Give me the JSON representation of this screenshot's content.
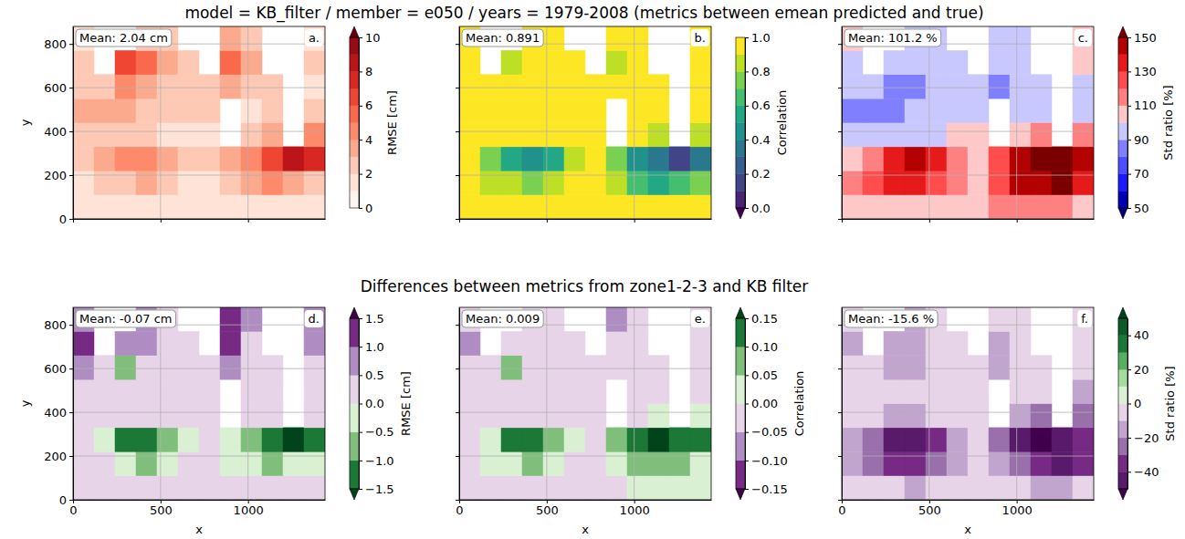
{
  "titles": [
    "model = KB_filter / member = e050 / years = 1979-2008 (metrics between emean predicted and true)",
    "Differences between metrics from zone1-2-3 and KB filter"
  ],
  "chart_data": [
    {
      "type": "heatmap",
      "label": "a.",
      "annotation": "Mean: 2.04 cm",
      "ylabel": "y",
      "tick_labels": "y",
      "grid": true,
      "xlim": [
        0,
        1440
      ],
      "ylim": [
        0,
        880
      ],
      "xticks": [
        0,
        500,
        1000
      ],
      "yticks": [
        0,
        200,
        400,
        600,
        800
      ],
      "x": [
        60,
        180,
        300,
        420,
        540,
        660,
        780,
        900,
        1020,
        1140,
        1260,
        1380
      ],
      "y": [
        55,
        165,
        275,
        385,
        495,
        605,
        715,
        825
      ],
      "values": [
        [
          1.2,
          1.0,
          1.1,
          1.3,
          1.2,
          1.0,
          1.1,
          1.4,
          1.6,
          1.8,
          1.5,
          1.3
        ],
        [
          1.8,
          2.2,
          2.6,
          3.0,
          2.4,
          1.9,
          1.7,
          2.6,
          3.5,
          4.2,
          3.8,
          2.9
        ],
        [
          2.4,
          3.2,
          4.1,
          4.6,
          3.8,
          2.7,
          2.2,
          3.1,
          4.8,
          6.5,
          8.4,
          7.2
        ],
        [
          2.1,
          2.5,
          2.3,
          2.0,
          1.8,
          1.6,
          1.5,
          null,
          2.6,
          3.4,
          null,
          4.1
        ],
        [
          3.0,
          3.4,
          3.1,
          2.8,
          2.6,
          2.4,
          2.1,
          null,
          1.9,
          2.2,
          null,
          2.5
        ],
        [
          2.6,
          2.9,
          4.3,
          3.6,
          2.7,
          2.1,
          2.0,
          3.2,
          2.4,
          2.1,
          null,
          1.8
        ],
        [
          2.2,
          null,
          6.8,
          5.1,
          3.0,
          2.3,
          null,
          5.4,
          3.6,
          null,
          null,
          2.0
        ],
        [
          1.6,
          null,
          null,
          2.9,
          2.4,
          null,
          null,
          3.1,
          2.7,
          null,
          null,
          1.7
        ]
      ],
      "colorbar": {
        "label": "RMSE [cm]",
        "range": [
          0,
          10
        ],
        "ticks": [
          0,
          2,
          4,
          6,
          8,
          10
        ],
        "levels": [
          0,
          1,
          2,
          3,
          4,
          5,
          6,
          7,
          8,
          9,
          10
        ],
        "colors": [
          null,
          "#fff5f0",
          "#fee3d6",
          "#fdc9b4",
          "#fcaa8e",
          "#fc8a6b",
          "#f9694c",
          "#ef4533",
          "#d92723",
          "#bb151a",
          "#970b13",
          "#67000d"
        ]
      }
    },
    {
      "type": "heatmap",
      "label": "b.",
      "annotation": "Mean: 0.891",
      "tick_labels": false,
      "grid": true,
      "xlim": [
        0,
        1440
      ],
      "ylim": [
        0,
        880
      ],
      "xticks": [
        0,
        500,
        1000
      ],
      "yticks": [
        0,
        200,
        400,
        600,
        800
      ],
      "x": [
        60,
        180,
        300,
        420,
        540,
        660,
        780,
        900,
        1020,
        1140,
        1260,
        1380
      ],
      "y": [
        55,
        165,
        275,
        385,
        495,
        605,
        715,
        825
      ],
      "values": [
        [
          0.97,
          0.97,
          0.96,
          0.95,
          0.96,
          0.97,
          0.97,
          0.95,
          0.93,
          0.92,
          0.94,
          0.95
        ],
        [
          0.93,
          0.88,
          0.82,
          0.74,
          0.8,
          0.9,
          0.93,
          0.84,
          0.68,
          0.55,
          0.62,
          0.78
        ],
        [
          0.9,
          0.78,
          0.52,
          0.41,
          0.58,
          0.82,
          0.9,
          0.73,
          0.45,
          0.33,
          0.18,
          0.36
        ],
        [
          0.94,
          0.92,
          0.93,
          0.95,
          0.95,
          0.96,
          0.96,
          null,
          0.91,
          0.86,
          null,
          0.82
        ],
        [
          0.96,
          0.95,
          0.96,
          0.97,
          0.97,
          0.97,
          0.97,
          null,
          0.97,
          0.96,
          null,
          0.95
        ],
        [
          0.95,
          0.94,
          0.9,
          0.93,
          0.95,
          0.96,
          0.96,
          0.92,
          0.95,
          0.96,
          null,
          0.96
        ],
        [
          0.96,
          null,
          0.86,
          0.9,
          0.95,
          0.96,
          null,
          0.89,
          0.93,
          null,
          null,
          0.96
        ],
        [
          0.97,
          null,
          null,
          0.94,
          0.96,
          null,
          null,
          0.93,
          0.95,
          null,
          null,
          0.97
        ]
      ],
      "colorbar": {
        "label": "Correlation",
        "range": [
          0,
          1
        ],
        "ticks": [
          {
            "value": 0,
            "label": "0.0"
          },
          0.2,
          0.4,
          0.6,
          0.8,
          {
            "value": 1,
            "label": "1.0"
          }
        ],
        "levels": [
          0,
          0.1,
          0.2,
          0.3,
          0.4,
          0.5,
          0.6,
          0.7,
          0.8,
          0.9,
          1
        ],
        "colors": [
          "#440154",
          "#482475",
          "#414487",
          "#355f8d",
          "#2a788e",
          "#21918c",
          "#22a884",
          "#44bf70",
          "#7ad151",
          "#bddf26",
          "#fde725",
          null
        ]
      }
    },
    {
      "type": "heatmap",
      "label": "c.",
      "annotation": "Mean: 101.2 %",
      "tick_labels": false,
      "grid": true,
      "xlim": [
        0,
        1440
      ],
      "ylim": [
        0,
        880
      ],
      "xticks": [
        0,
        500,
        1000
      ],
      "yticks": [
        0,
        200,
        400,
        600,
        800
      ],
      "x": [
        60,
        180,
        300,
        420,
        540,
        660,
        780,
        900,
        1020,
        1140,
        1260,
        1380
      ],
      "y": [
        55,
        165,
        275,
        385,
        495,
        605,
        715,
        825
      ],
      "values": [
        [
          104,
          102,
          106,
          108,
          105,
          103,
          102,
          110,
          112,
          115,
          110,
          106
        ],
        [
          112,
          120,
          132,
          138,
          128,
          116,
          108,
          124,
          140,
          146,
          152,
          136
        ],
        [
          108,
          118,
          136,
          144,
          132,
          114,
          106,
          122,
          142,
          156,
          158,
          148
        ],
        [
          98,
          96,
          94,
          97,
          99,
          100,
          101,
          null,
          104,
          112,
          null,
          118
        ],
        [
          86,
          84,
          88,
          92,
          94,
          95,
          96,
          null,
          93,
          90,
          null,
          96
        ],
        [
          92,
          90,
          84,
          86,
          92,
          94,
          95,
          88,
          91,
          93,
          null,
          97
        ],
        [
          98,
          null,
          92,
          94,
          97,
          99,
          null,
          90,
          95,
          null,
          null,
          100
        ],
        [
          100,
          null,
          null,
          97,
          99,
          null,
          null,
          96,
          98,
          null,
          null,
          101
        ]
      ],
      "colorbar": {
        "label": "Std ratio [%]",
        "range": [
          50,
          150
        ],
        "ticks": [
          50,
          70,
          90,
          110,
          130,
          150
        ],
        "levels": [
          50,
          60,
          70,
          80,
          90,
          100,
          110,
          120,
          130,
          140,
          150
        ],
        "colors": [
          "#00007a",
          "#0000b3",
          "#1a1aff",
          "#4d4dff",
          "#8080ff",
          "#c8c8ff",
          "#ffc8c8",
          "#ff8080",
          "#ff4d4d",
          "#e61a1a",
          "#b30000",
          "#7a0000"
        ]
      }
    },
    {
      "type": "heatmap",
      "label": "d.",
      "annotation": "Mean: -0.07 cm",
      "xlabel": "x",
      "ylabel": "y",
      "grid": true,
      "xlim": [
        0,
        1440
      ],
      "ylim": [
        0,
        880
      ],
      "xticks": [
        0,
        500,
        1000
      ],
      "yticks": [
        0,
        200,
        400,
        600,
        800
      ],
      "x": [
        60,
        180,
        300,
        420,
        540,
        660,
        780,
        900,
        1020,
        1140,
        1260,
        1380
      ],
      "y": [
        55,
        165,
        275,
        385,
        495,
        605,
        715,
        825
      ],
      "values": [
        [
          0.1,
          0.1,
          0.1,
          0.1,
          0.1,
          0.1,
          0.1,
          0.1,
          0.1,
          0.2,
          0.1,
          0.1
        ],
        [
          0.1,
          0.1,
          -0.3,
          -0.6,
          -0.2,
          0.1,
          0.1,
          -0.2,
          -0.4,
          -0.6,
          -0.5,
          -0.2
        ],
        [
          0.2,
          -0.4,
          -1.1,
          -1.3,
          -0.8,
          -0.1,
          0.1,
          -0.4,
          -1.0,
          -1.4,
          -1.6,
          -1.2
        ],
        [
          0.2,
          0.1,
          0.2,
          0.2,
          0.1,
          0.1,
          0.1,
          null,
          0.2,
          0.1,
          null,
          0.3
        ],
        [
          0.4,
          0.3,
          0.2,
          0.2,
          0.2,
          0.2,
          0.2,
          null,
          0.3,
          0.4,
          null,
          0.2
        ],
        [
          0.6,
          0.4,
          -0.6,
          0.2,
          0.2,
          0.2,
          0.3,
          0.8,
          0.3,
          0.4,
          null,
          0.3
        ],
        [
          1.2,
          null,
          0.9,
          0.5,
          0.2,
          0.3,
          null,
          1.1,
          0.4,
          null,
          null,
          0.6
        ],
        [
          0.8,
          null,
          null,
          0.6,
          0.4,
          null,
          null,
          1.3,
          0.5,
          null,
          null,
          0.9
        ]
      ],
      "colorbar": {
        "label": "RMSE [cm]",
        "range": [
          -1.5,
          1.5
        ],
        "ticks": [
          {
            "value": -1.5,
            "label": "−1.5"
          },
          {
            "value": -1,
            "label": "−1.0"
          },
          {
            "value": -0.5,
            "label": "−0.5"
          },
          {
            "value": 0,
            "label": "0.0"
          },
          0.5,
          {
            "value": 1,
            "label": "1.0"
          },
          1.5
        ],
        "levels": [
          -1.5,
          -1,
          -0.5,
          0,
          0.5,
          1,
          1.5
        ],
        "colors": [
          "#00441b",
          "#1b7837",
          "#7fbf7b",
          "#d9f0d3",
          "#e7d4e8",
          "#af8dc3",
          "#762a83",
          "#40004b"
        ]
      }
    },
    {
      "type": "heatmap",
      "label": "e.",
      "annotation": "Mean: 0.009",
      "xlabel": "x",
      "tick_labels": "x",
      "grid": true,
      "xlim": [
        0,
        1440
      ],
      "ylim": [
        0,
        880
      ],
      "xticks": [
        0,
        500,
        1000
      ],
      "yticks": [
        0,
        200,
        400,
        600,
        800
      ],
      "x": [
        60,
        180,
        300,
        420,
        540,
        660,
        780,
        900,
        1020,
        1140,
        1260,
        1380
      ],
      "y": [
        55,
        165,
        275,
        385,
        495,
        605,
        715,
        825
      ],
      "values": [
        [
          -0.01,
          -0.01,
          -0.01,
          -0.01,
          -0.01,
          -0.01,
          -0.01,
          -0.01,
          0.0,
          0.01,
          0.0,
          0.0
        ],
        [
          -0.01,
          0.0,
          0.03,
          0.06,
          0.02,
          -0.01,
          -0.01,
          0.02,
          0.05,
          0.07,
          0.06,
          0.03
        ],
        [
          -0.01,
          0.04,
          0.11,
          0.14,
          0.08,
          0.01,
          -0.01,
          0.05,
          0.12,
          0.16,
          0.13,
          0.1
        ],
        [
          -0.02,
          -0.02,
          -0.02,
          -0.01,
          -0.01,
          -0.01,
          -0.01,
          null,
          -0.01,
          0.01,
          null,
          0.02
        ],
        [
          -0.03,
          -0.02,
          -0.02,
          -0.01,
          -0.01,
          -0.01,
          -0.01,
          null,
          -0.02,
          -0.02,
          null,
          -0.01
        ],
        [
          -0.03,
          -0.02,
          0.06,
          -0.02,
          -0.01,
          -0.01,
          -0.01,
          -0.04,
          -0.02,
          -0.02,
          null,
          -0.02
        ],
        [
          -0.06,
          null,
          -0.04,
          -0.03,
          -0.01,
          -0.01,
          null,
          -0.05,
          -0.02,
          null,
          null,
          -0.03
        ],
        [
          -0.04,
          null,
          null,
          -0.03,
          -0.02,
          null,
          null,
          -0.06,
          -0.03,
          null,
          null,
          -0.04
        ]
      ],
      "colorbar": {
        "label": "Correlation",
        "range": [
          -0.15,
          0.15
        ],
        "ticks": [
          {
            "value": -0.15,
            "label": "−0.15"
          },
          {
            "value": -0.1,
            "label": "−0.10"
          },
          {
            "value": -0.05,
            "label": "−0.05"
          },
          {
            "value": 0,
            "label": "0.00"
          },
          0.05,
          {
            "value": 0.1,
            "label": "0.10"
          },
          0.15
        ],
        "levels": [
          -0.15,
          -0.1,
          -0.05,
          0,
          0.05,
          0.1,
          0.15
        ],
        "colors": [
          "#40004b",
          "#762a83",
          "#af8dc3",
          "#e7d4e8",
          "#d9f0d3",
          "#7fbf7b",
          "#1b7837",
          "#00441b"
        ]
      }
    },
    {
      "type": "heatmap",
      "label": "f.",
      "annotation": "Mean: -15.6 %",
      "xlabel": "x",
      "tick_labels": "x",
      "grid": true,
      "xlim": [
        0,
        1440
      ],
      "ylim": [
        0,
        880
      ],
      "xticks": [
        0,
        500,
        1000
      ],
      "yticks": [
        0,
        200,
        400,
        600,
        800
      ],
      "x": [
        60,
        180,
        300,
        420,
        540,
        660,
        780,
        900,
        1020,
        1140,
        1260,
        1380
      ],
      "y": [
        55,
        165,
        275,
        385,
        495,
        605,
        715,
        825
      ],
      "values": [
        [
          -8,
          -8,
          -10,
          -12,
          -10,
          -8,
          -6,
          -8,
          -10,
          -14,
          -12,
          -10
        ],
        [
          -14,
          -22,
          -32,
          -38,
          -28,
          -16,
          -10,
          -20,
          -30,
          -40,
          -44,
          -34
        ],
        [
          -16,
          -28,
          -42,
          -46,
          -36,
          -18,
          -10,
          -26,
          -44,
          -52,
          -48,
          -40
        ],
        [
          -10,
          -10,
          -12,
          -12,
          -10,
          -8,
          -6,
          null,
          -14,
          -26,
          null,
          -30
        ],
        [
          -8,
          -8,
          -8,
          -8,
          -8,
          -6,
          -6,
          null,
          -6,
          -10,
          null,
          -12
        ],
        [
          -10,
          -10,
          -14,
          -12,
          -8,
          -8,
          -8,
          -12,
          -8,
          -8,
          null,
          -8
        ],
        [
          -12,
          null,
          -18,
          -14,
          -8,
          -8,
          null,
          -14,
          -10,
          null,
          null,
          -10
        ],
        [
          -10,
          null,
          null,
          -12,
          -8,
          null,
          null,
          -10,
          -8,
          null,
          null,
          -10
        ]
      ],
      "colorbar": {
        "label": "Std ratio [%]",
        "range": [
          -50,
          50
        ],
        "ticks": [
          {
            "value": -40,
            "label": "−40"
          },
          {
            "value": -20,
            "label": "−20"
          },
          0,
          20,
          40
        ],
        "levels": [
          -50,
          -40,
          -30,
          -20,
          -10,
          0,
          10,
          20,
          30,
          40,
          50
        ],
        "colors": [
          "#40004b",
          "#5a1a6b",
          "#762a83",
          "#9970ab",
          "#c2a5cf",
          "#e7d4e8",
          "#d9f0d3",
          "#a6dba0",
          "#5aae61",
          "#1b7837",
          "#0f5a2a",
          "#00441b"
        ]
      }
    }
  ]
}
